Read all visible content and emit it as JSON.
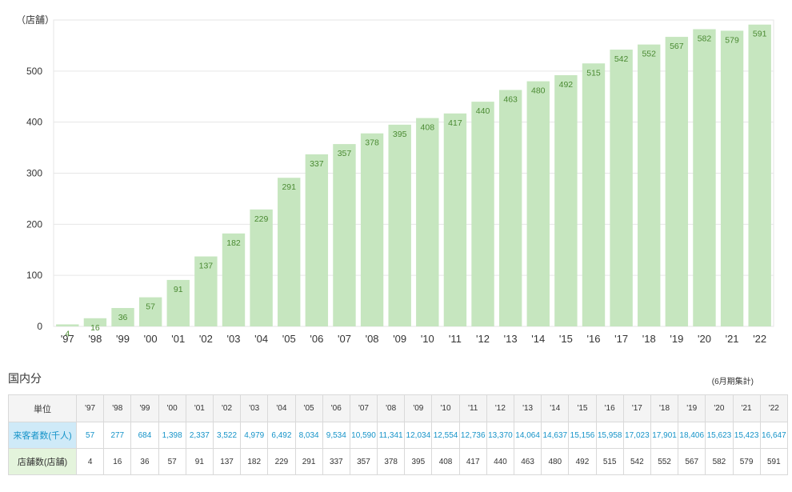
{
  "chart_data": {
    "type": "bar",
    "unit_label": "（店舗）",
    "categories": [
      "'97",
      "'98",
      "'99",
      "'00",
      "'01",
      "'02",
      "'03",
      "'04",
      "'05",
      "'06",
      "'07",
      "'08",
      "'09",
      "'10",
      "'11",
      "'12",
      "'13",
      "'14",
      "'15",
      "'16",
      "'17",
      "'18",
      "'19",
      "'20",
      "'21",
      "'22"
    ],
    "values": [
      4,
      16,
      36,
      57,
      91,
      137,
      182,
      229,
      291,
      337,
      357,
      378,
      395,
      408,
      417,
      440,
      463,
      480,
      492,
      515,
      542,
      552,
      567,
      582,
      579,
      591
    ],
    "ylim": [
      0,
      600
    ],
    "yticks": [
      0,
      100,
      200,
      300,
      400,
      500
    ],
    "grid": true,
    "colors": {
      "bar": "#c6e6bf",
      "label": "#4a8a32",
      "grid": "#e6e6e6",
      "axis": "#333333"
    }
  },
  "table": {
    "section_title": "国内分",
    "note": "(6月期集計)",
    "header_label": "単位",
    "years": [
      "'97",
      "'98",
      "'99",
      "'00",
      "'01",
      "'02",
      "'03",
      "'04",
      "'05",
      "'06",
      "'07",
      "'08",
      "'09",
      "'10",
      "'11",
      "'12",
      "'13",
      "'14",
      "'15",
      "'16",
      "'17",
      "'18",
      "'19",
      "'20",
      "'21",
      "'22"
    ],
    "rows": [
      {
        "label": "来客者数(千人)",
        "values": [
          "57",
          "277",
          "684",
          "1,398",
          "2,337",
          "3,522",
          "4,979",
          "6,492",
          "8,034",
          "9,534",
          "10,590",
          "11,341",
          "12,034",
          "12,554",
          "12,736",
          "13,370",
          "14,064",
          "14,637",
          "15,156",
          "15,958",
          "17,023",
          "17,901",
          "18,406",
          "15,623",
          "15,423",
          "16,647"
        ]
      },
      {
        "label": "店舗数(店舗)",
        "values": [
          "4",
          "16",
          "36",
          "57",
          "91",
          "137",
          "182",
          "229",
          "291",
          "337",
          "357",
          "378",
          "395",
          "408",
          "417",
          "440",
          "463",
          "480",
          "492",
          "515",
          "542",
          "552",
          "567",
          "582",
          "579",
          "591"
        ]
      }
    ]
  }
}
